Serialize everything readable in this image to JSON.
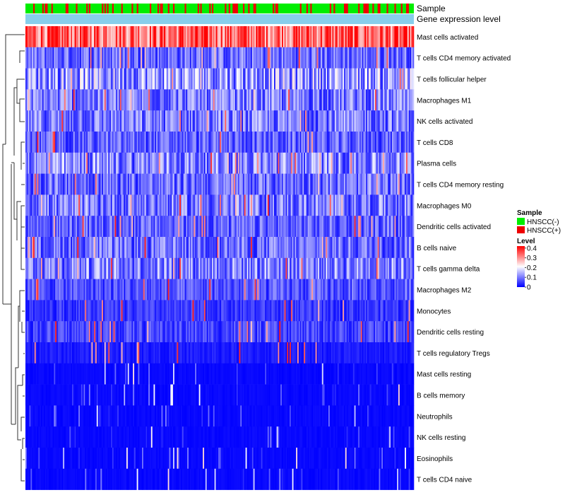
{
  "chart_data": {
    "type": "heatmap",
    "title": "",
    "annotation_tracks": [
      "Sample",
      "Gene expression level"
    ],
    "rows": [
      {
        "label": "Mast cells activated",
        "mean_level": 0.34
      },
      {
        "label": "T cells CD4 memory activated",
        "mean_level": 0.08
      },
      {
        "label": "T cells follicular helper",
        "mean_level": 0.12
      },
      {
        "label": "Macrophages M1",
        "mean_level": 0.09
      },
      {
        "label": "NK cells activated",
        "mean_level": 0.09
      },
      {
        "label": "T cells CD8",
        "mean_level": 0.07
      },
      {
        "label": "Plasma cells",
        "mean_level": 0.1
      },
      {
        "label": "T cells CD4 memory resting",
        "mean_level": 0.08
      },
      {
        "label": "Macrophages M0",
        "mean_level": 0.09
      },
      {
        "label": "Dendritic cells activated",
        "mean_level": 0.07
      },
      {
        "label": "B cells naive",
        "mean_level": 0.08
      },
      {
        "label": "T cells gamma delta",
        "mean_level": 0.1
      },
      {
        "label": "Macrophages M2",
        "mean_level": 0.06
      },
      {
        "label": "Monocytes",
        "mean_level": 0.04
      },
      {
        "label": "Dendritic cells resting",
        "mean_level": 0.05
      },
      {
        "label": "T cells regulatory  Tregs",
        "mean_level": 0.02
      },
      {
        "label": "Mast cells resting",
        "mean_level": 0.01
      },
      {
        "label": "B cells memory",
        "mean_level": 0.01
      },
      {
        "label": "Neutrophils",
        "mean_level": 0.01
      },
      {
        "label": "NK cells resting",
        "mean_level": 0.01
      },
      {
        "label": "Eosinophils",
        "mean_level": 0.005
      },
      {
        "label": "T cells CD4 naive",
        "mean_level": 0.01
      }
    ],
    "sample_legend": {
      "title": "Sample",
      "entries": [
        {
          "label": "HNSCC(-)",
          "color": "#00ee00"
        },
        {
          "label": "HNSCC(+)",
          "color": "#ee0000"
        }
      ],
      "positive_fraction": 0.25
    },
    "level_legend": {
      "title": "Level",
      "ticks": [
        0.4,
        0.3,
        0.2,
        0.1,
        0
      ],
      "tick_labels": [
        "0.4",
        "0.3",
        "0.2",
        "0.1",
        "0"
      ],
      "range": [
        0,
        0.42
      ],
      "colors": {
        "low": "#0000ff",
        "mid": "#ffffff",
        "high": "#ff0000"
      }
    },
    "gene_expression_color": "#87ceeb",
    "n_samples": 300
  }
}
